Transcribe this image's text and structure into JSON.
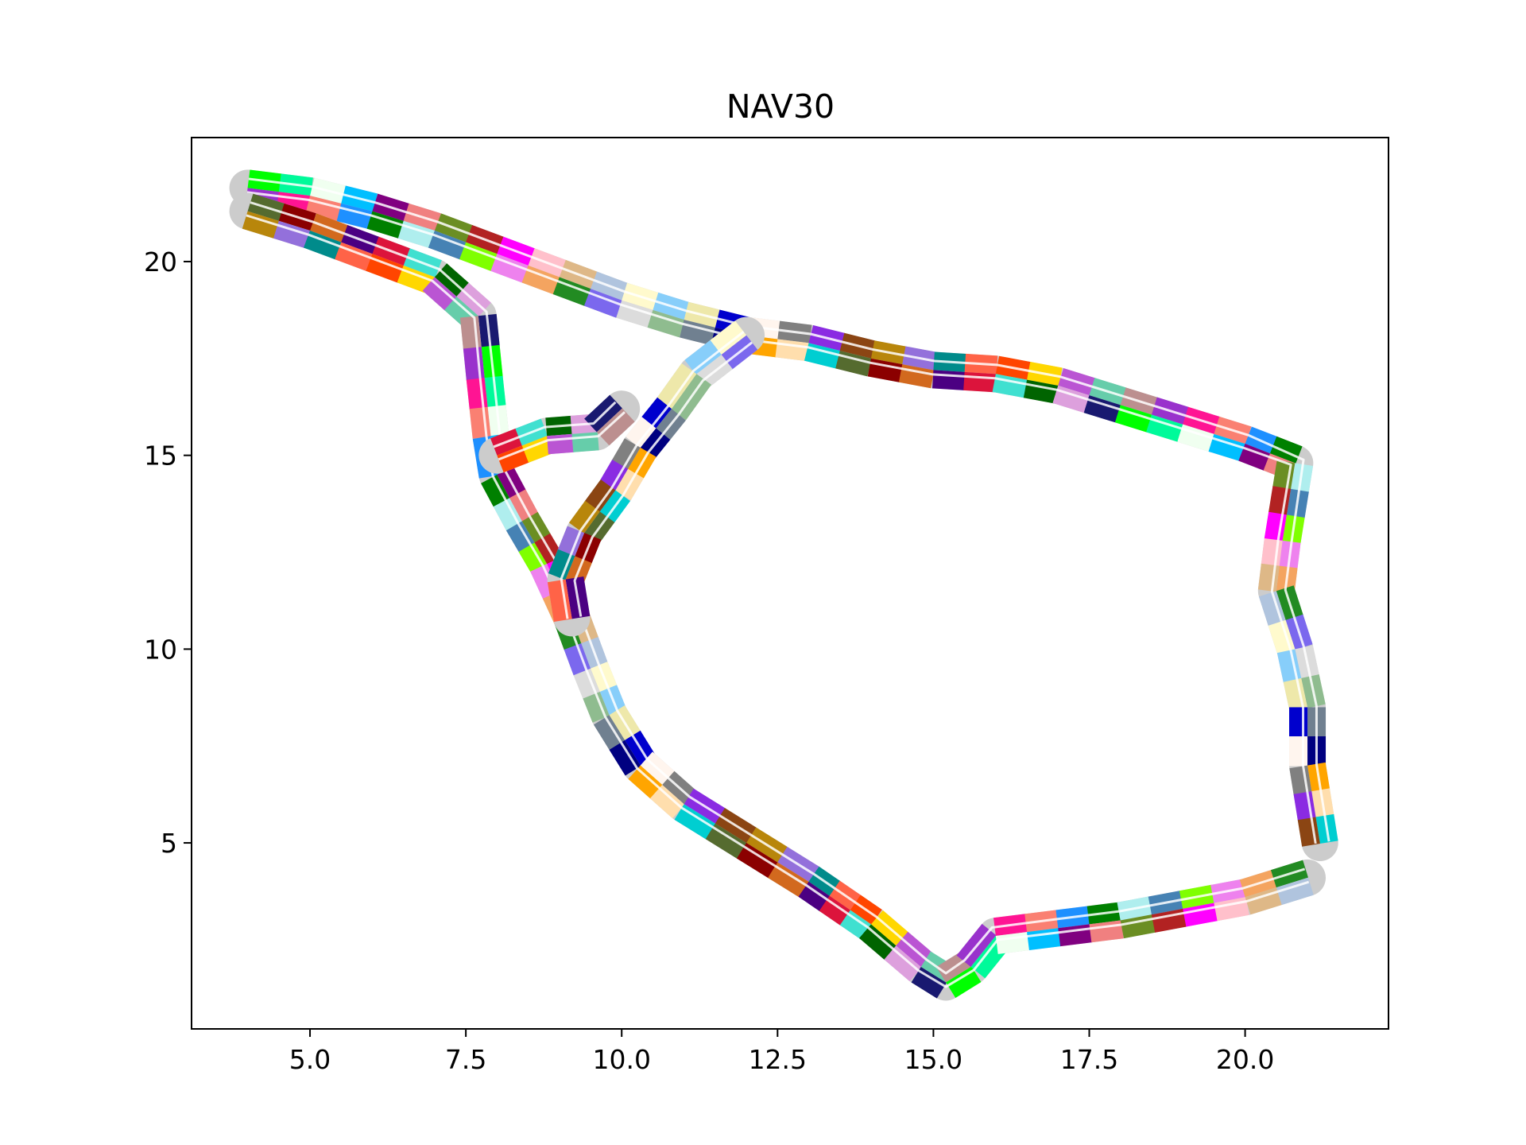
{
  "chart_data": {
    "type": "scatter",
    "title": "NAV30",
    "xlabel": "",
    "ylabel": "",
    "xlim": [
      3.1,
      22.3
    ],
    "ylim": [
      0.2,
      23.2
    ],
    "xticks": [
      "5.0",
      "7.5",
      "10.0",
      "12.5",
      "15.0",
      "17.5",
      "20.0"
    ],
    "yticks": [
      "5",
      "10",
      "15",
      "20"
    ],
    "xtick_values": [
      5.0,
      7.5,
      10.0,
      12.5,
      15.0,
      17.5,
      20.0
    ],
    "ytick_values": [
      5,
      10,
      15,
      20
    ],
    "grid": false,
    "legend": "none",
    "series": [
      {
        "color": "#cccccc",
        "trajectory": [
          [
            4.0,
            21.9
          ],
          [
            5.0,
            21.7
          ],
          [
            6.0,
            21.3
          ],
          [
            7.0,
            20.8
          ],
          [
            8.0,
            20.2
          ],
          [
            9.0,
            19.6
          ],
          [
            10.0,
            19.0
          ],
          [
            11.0,
            18.5
          ],
          [
            12.0,
            18.1
          ],
          [
            13.0,
            17.9
          ],
          [
            14.0,
            17.5
          ],
          [
            15.0,
            17.2
          ],
          [
            16.0,
            17.1
          ],
          [
            17.0,
            16.8
          ],
          [
            18.0,
            16.3
          ],
          [
            19.0,
            15.8
          ],
          [
            20.0,
            15.3
          ],
          [
            20.8,
            14.8
          ],
          [
            20.6,
            12.8
          ],
          [
            20.5,
            11.5
          ],
          [
            20.8,
            10.0
          ],
          [
            21.0,
            8.5
          ],
          [
            21.0,
            7.0
          ],
          [
            21.2,
            5.0
          ]
        ]
      },
      {
        "color": "#cccccc",
        "trajectory": [
          [
            4.0,
            21.3
          ],
          [
            5.0,
            20.8
          ],
          [
            6.0,
            20.2
          ],
          [
            7.0,
            19.6
          ],
          [
            7.7,
            18.6
          ],
          [
            7.8,
            17.0
          ],
          [
            7.9,
            15.5
          ],
          [
            8.0,
            14.5
          ],
          [
            8.4,
            13.3
          ],
          [
            8.8,
            12.2
          ],
          [
            9.2,
            10.8
          ],
          [
            9.5,
            9.5
          ],
          [
            9.8,
            8.3
          ],
          [
            10.3,
            7.0
          ],
          [
            11.0,
            6.0
          ],
          [
            12.0,
            5.0
          ],
          [
            13.0,
            4.0
          ],
          [
            14.0,
            2.9
          ],
          [
            14.8,
            1.8
          ],
          [
            15.2,
            1.4
          ],
          [
            15.6,
            1.8
          ],
          [
            16.0,
            2.6
          ],
          [
            17.0,
            2.8
          ],
          [
            18.0,
            3.0
          ],
          [
            19.0,
            3.3
          ],
          [
            20.0,
            3.6
          ],
          [
            21.0,
            4.1
          ]
        ]
      },
      {
        "color": "#cccccc",
        "trajectory": [
          [
            12.0,
            18.1
          ],
          [
            11.2,
            17.1
          ],
          [
            10.8,
            16.2
          ],
          [
            10.3,
            15.2
          ],
          [
            9.9,
            14.1
          ],
          [
            9.4,
            13.0
          ],
          [
            9.1,
            11.8
          ],
          [
            9.2,
            10.8
          ]
        ]
      },
      {
        "color": "#cccccc",
        "trajectory": [
          [
            8.0,
            15.0
          ],
          [
            8.8,
            15.5
          ],
          [
            9.6,
            15.6
          ],
          [
            10.0,
            16.2
          ]
        ]
      }
    ]
  }
}
